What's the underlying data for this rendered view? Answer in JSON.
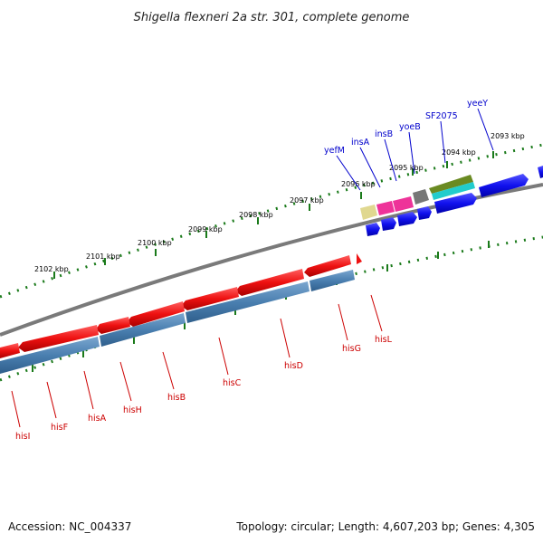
{
  "title": "Shigella flexneri 2a str. 301, complete genome",
  "footer": {
    "accession": "Accession: NC_004337",
    "summary": "Topology: circular; Length: 4,607,203 bp; Genes: 4,305"
  },
  "ruler_labels": [
    "2093 kbp",
    "2094 kbp",
    "2095 kbp",
    "2096 kbp",
    "2097 kbp",
    "2098 kbp",
    "2099 kbp",
    "2100 kbp",
    "2101 kbp",
    "2102 kbp"
  ],
  "upper_genes": [
    "yeeY",
    "SF2075",
    "yoeB",
    "insB",
    "insA",
    "yefM"
  ],
  "lower_genes": [
    "hisL",
    "hisG",
    "hisD",
    "hisC",
    "hisB",
    "hisH",
    "hisA",
    "hisF",
    "hisI"
  ],
  "colors": {
    "backbone": "#7a7a7a",
    "his_operon": "#ee1111",
    "his_orf": "#4a7fb0",
    "forward_gene": "#1111ee",
    "insA": "#e0d890",
    "insB": "#ee3399",
    "yoeB": "#777777",
    "SF2075_a": "#6a8a22",
    "SF2075_b": "#22cccc",
    "tick": "#1a7a1a",
    "upper_label": "#0000cc",
    "lower_label": "#cc0000"
  }
}
